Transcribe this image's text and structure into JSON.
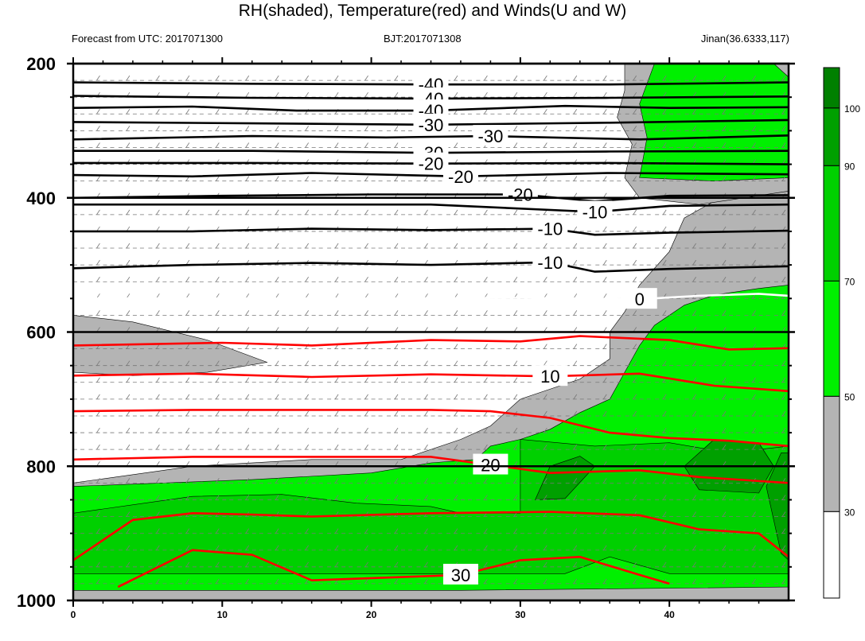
{
  "title": "RH(shaded), Temperature(red) and Winds(U and W)",
  "subtitle_left": "Forecast from UTC: 2017071300",
  "subtitle_center": "BJT:2017071308",
  "subtitle_right": "Jinan(36.6333,117)",
  "colors": {
    "rh_lt30": "#ffffff",
    "rh_30_50": "#b4b4b4",
    "rh_50_70": "#00f000",
    "rh_70_90": "#00d000",
    "rh_90_100": "#00a000",
    "rh_gt100": "#008000",
    "temperature_warm": "#ff0000",
    "temperature_cold": "#000000",
    "temperature_zero": "#ffffff"
  },
  "chart_data": {
    "type": "heatmap",
    "x_ticks": [
      "0",
      "10",
      "20",
      "30",
      "40"
    ],
    "y_ticks": [
      "200",
      "400",
      "600",
      "800",
      "1000"
    ],
    "xlim": [
      0,
      48
    ],
    "ylim": [
      1000,
      200
    ],
    "colorbar": {
      "labels": [
        "30",
        "50",
        "70",
        "90",
        "100"
      ],
      "levels": [
        30,
        50,
        70,
        90,
        100
      ],
      "colors": [
        "#ffffff",
        "#b4b4b4",
        "#00f000",
        "#00d000",
        "#00a000",
        "#008000"
      ]
    },
    "temperature_contours": [
      {
        "value": -40,
        "label": "-40",
        "color": "#000000",
        "points": [
          [
            0,
            228
          ],
          [
            12,
            230
          ],
          [
            24,
            231
          ],
          [
            36,
            231
          ],
          [
            48,
            228
          ]
        ]
      },
      {
        "value": -40,
        "label": "-40",
        "color": "#000000",
        "points": [
          [
            0,
            248
          ],
          [
            12,
            251
          ],
          [
            24,
            252
          ],
          [
            36,
            251
          ],
          [
            48,
            249
          ]
        ]
      },
      {
        "value": -40,
        "label": "-40",
        "color": "#000000",
        "points": [
          [
            0,
            266
          ],
          [
            8,
            264
          ],
          [
            15,
            270
          ],
          [
            24,
            270
          ],
          [
            33,
            263
          ],
          [
            40,
            266
          ],
          [
            48,
            265
          ]
        ]
      },
      {
        "value": -30,
        "label": "-30",
        "color": "#000000",
        "points": [
          [
            0,
            287
          ],
          [
            12,
            289
          ],
          [
            24,
            291
          ],
          [
            36,
            288
          ],
          [
            48,
            284
          ]
        ]
      },
      {
        "value": -30,
        "label": "-30",
        "color": "#000000",
        "points": [
          [
            0,
            313
          ],
          [
            12,
            308
          ],
          [
            21,
            310
          ],
          [
            28,
            308
          ],
          [
            38,
            313
          ],
          [
            48,
            307
          ]
        ]
      },
      {
        "value": -30,
        "label": "-30",
        "color": "#000000",
        "points": [
          [
            0,
            330
          ],
          [
            12,
            330
          ],
          [
            24,
            333
          ],
          [
            36,
            331
          ],
          [
            48,
            330
          ]
        ]
      },
      {
        "value": -20,
        "label": "-20",
        "color": "#000000",
        "points": [
          [
            0,
            348
          ],
          [
            12,
            348
          ],
          [
            24,
            349
          ],
          [
            36,
            348
          ],
          [
            48,
            350
          ]
        ]
      },
      {
        "value": -20,
        "label": "-20",
        "color": "#000000",
        "points": [
          [
            0,
            366
          ],
          [
            8,
            368
          ],
          [
            16,
            363
          ],
          [
            26,
            368
          ],
          [
            36,
            363
          ],
          [
            48,
            365
          ]
        ]
      },
      {
        "value": -20,
        "label": "-20",
        "color": "#000000",
        "points": [
          [
            0,
            400
          ],
          [
            10,
            397
          ],
          [
            20,
            395
          ],
          [
            30,
            395
          ],
          [
            35,
            405
          ],
          [
            40,
            397
          ],
          [
            48,
            396
          ]
        ]
      },
      {
        "value": -10,
        "label": "-10",
        "color": "#000000",
        "points": [
          [
            0,
            410
          ],
          [
            12,
            410
          ],
          [
            24,
            410
          ],
          [
            35,
            421
          ],
          [
            40,
            412
          ],
          [
            48,
            410
          ]
        ]
      },
      {
        "value": -10,
        "label": "-10",
        "color": "#000000",
        "points": [
          [
            0,
            450
          ],
          [
            8,
            450
          ],
          [
            16,
            446
          ],
          [
            24,
            448
          ],
          [
            32,
            446
          ],
          [
            35,
            455
          ],
          [
            40,
            452
          ],
          [
            48,
            449
          ]
        ]
      },
      {
        "value": -10,
        "label": "-10",
        "color": "#000000",
        "points": [
          [
            0,
            505
          ],
          [
            8,
            500
          ],
          [
            16,
            497
          ],
          [
            24,
            500
          ],
          [
            32,
            496
          ],
          [
            35,
            510
          ],
          [
            40,
            506
          ],
          [
            48,
            502
          ]
        ]
      },
      {
        "value": 0,
        "label": "0",
        "color": "#ffffff",
        "points": [
          [
            0,
            550
          ],
          [
            10,
            550
          ],
          [
            20,
            550
          ],
          [
            30,
            549
          ],
          [
            38,
            551
          ],
          [
            42,
            546
          ],
          [
            46,
            543
          ],
          [
            48,
            546
          ]
        ]
      },
      {
        "value": 10,
        "label": "",
        "color": "#ff0000",
        "points": [
          [
            0,
            620
          ],
          [
            10,
            616
          ],
          [
            16,
            620
          ],
          [
            24,
            612
          ],
          [
            30,
            614
          ],
          [
            34,
            606
          ],
          [
            40,
            612
          ],
          [
            44,
            626
          ],
          [
            48,
            624
          ]
        ]
      },
      {
        "value": 10,
        "label": "10",
        "color": "#ff0000",
        "points": [
          [
            0,
            665
          ],
          [
            8,
            662
          ],
          [
            16,
            667
          ],
          [
            24,
            663
          ],
          [
            32,
            666
          ],
          [
            38,
            662
          ],
          [
            43,
            680
          ],
          [
            48,
            688
          ]
        ]
      },
      {
        "value": 20,
        "label": "",
        "color": "#ff0000",
        "points": [
          [
            0,
            718
          ],
          [
            8,
            716
          ],
          [
            16,
            716
          ],
          [
            24,
            716
          ],
          [
            28,
            718
          ],
          [
            32,
            728
          ],
          [
            36,
            750
          ],
          [
            40,
            758
          ],
          [
            44,
            762
          ],
          [
            48,
            770
          ]
        ]
      },
      {
        "value": 20,
        "label": "20",
        "color": "#ff0000",
        "points": [
          [
            0,
            790
          ],
          [
            8,
            786
          ],
          [
            16,
            786
          ],
          [
            24,
            786
          ],
          [
            28,
            798
          ],
          [
            32,
            810
          ],
          [
            38,
            806
          ],
          [
            42,
            816
          ],
          [
            48,
            825
          ]
        ]
      },
      {
        "value": 20,
        "label": "",
        "color": "#ff0000",
        "points": [
          [
            0,
            940
          ],
          [
            4,
            880
          ],
          [
            8,
            870
          ],
          [
            12,
            872
          ],
          [
            16,
            875
          ],
          [
            24,
            870
          ],
          [
            32,
            868
          ],
          [
            38,
            873
          ],
          [
            42,
            894
          ],
          [
            46,
            900
          ],
          [
            48,
            935
          ]
        ]
      },
      {
        "value": 30,
        "label": "30",
        "color": "#ff0000",
        "points": [
          [
            3,
            980
          ],
          [
            8,
            925
          ],
          [
            12,
            932
          ],
          [
            16,
            970
          ],
          [
            26,
            962
          ],
          [
            30,
            940
          ],
          [
            34,
            935
          ],
          [
            38,
            962
          ],
          [
            40,
            975
          ]
        ]
      }
    ]
  }
}
